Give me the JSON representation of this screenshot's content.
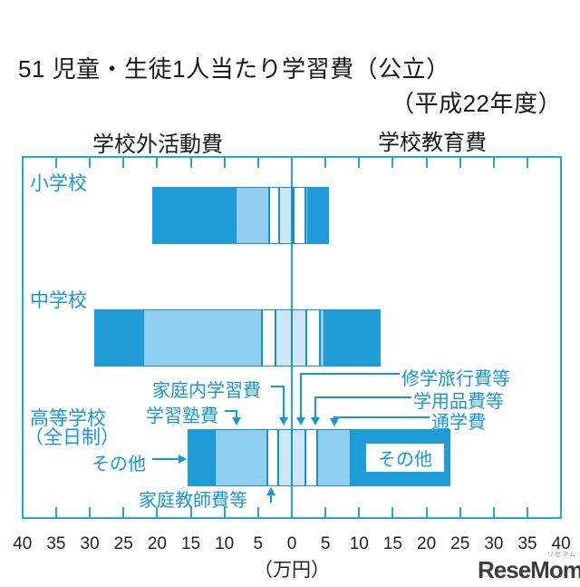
{
  "title": {
    "line1": "51 児童・生徒1人当たり学習費（公立）",
    "line2": "（平成22年度）"
  },
  "header": {
    "left_section": "学校外活動費",
    "right_section": "学校教育費"
  },
  "categories": {
    "row1": "小学校",
    "row2": "中学校",
    "row3_line1": "高等学校",
    "row3_line2": "（全日制）"
  },
  "annotations": {
    "katei_nai": "家庭内学習費",
    "juku": "学習塾費",
    "sonota_left": "その他",
    "katei_kyoshi": "家庭教師費等",
    "shugaku": "修学旅行費等",
    "gakuyohin": "学用品費等",
    "tsugaku": "通学費",
    "sonota_right_box": "その他"
  },
  "axis": {
    "tick_labels": [
      "40",
      "35",
      "30",
      "25",
      "20",
      "15",
      "10",
      "5",
      "0",
      "5",
      "10",
      "15",
      "20",
      "25",
      "30",
      "35",
      "40"
    ],
    "unit_label": "（万円）"
  },
  "logo": {
    "text": "ReseMom.",
    "furigana": "リセマム"
  },
  "colors": {
    "bar_dark": "#1e9cd7",
    "bar_light": "#8fceee",
    "bar_pale": "#cce6f6",
    "bar_white": "#ffffff",
    "frame_blue": "#29a3db",
    "annotation_blue": "#1a97d3",
    "text_black": "#221f1f"
  },
  "chart_data": {
    "type": "bar",
    "variant": "horizontal-diverging-stacked",
    "unit": "万円",
    "title": "51 児童・生徒1人当たり学習費（公立）（平成22年度）",
    "left_side_title": "学校外活動費",
    "right_side_title": "学校教育費",
    "xlabel": "（万円）",
    "xlim": [
      -40,
      40
    ],
    "tick_step": 5,
    "rows": [
      {
        "label": "小学校",
        "left_total": 20.7,
        "right_total": 5.5,
        "left_from_center": [
          {
            "name": "家庭内学習費",
            "value": 1.8,
            "color": "pale"
          },
          {
            "name": "家庭教師費等",
            "value": 1.5,
            "color": "white"
          },
          {
            "name": "学習塾費",
            "value": 5.0,
            "color": "light"
          },
          {
            "name": "その他",
            "value": 12.4,
            "color": "dark"
          }
        ],
        "right_from_center": [
          {
            "name": "修学旅行費等",
            "value": 0.3,
            "color": "pale"
          },
          {
            "name": "学用品費等",
            "value": 1.7,
            "color": "white"
          },
          {
            "name": "通学費",
            "value": 0.4,
            "color": "light"
          },
          {
            "name": "その他",
            "value": 3.1,
            "color": "dark"
          }
        ]
      },
      {
        "label": "中学校",
        "left_total": 29.3,
        "right_total": 13.2,
        "left_from_center": [
          {
            "name": "家庭内学習費",
            "value": 2.4,
            "color": "pale"
          },
          {
            "name": "家庭教師費等",
            "value": 2.0,
            "color": "white"
          },
          {
            "name": "学習塾費",
            "value": 17.6,
            "color": "light"
          },
          {
            "name": "その他",
            "value": 7.3,
            "color": "dark"
          }
        ],
        "right_from_center": [
          {
            "name": "修学旅行費等",
            "value": 2.2,
            "color": "pale"
          },
          {
            "name": "学用品費等",
            "value": 2.0,
            "color": "white"
          },
          {
            "name": "通学費",
            "value": 0.7,
            "color": "light"
          },
          {
            "name": "その他",
            "value": 8.3,
            "color": "dark"
          }
        ]
      },
      {
        "label": "高等学校（全日制）",
        "left_total": 15.4,
        "right_total": 23.6,
        "left_from_center": [
          {
            "name": "家庭内学習費",
            "value": 2.0,
            "color": "pale"
          },
          {
            "name": "家庭教師費等",
            "value": 1.6,
            "color": "white"
          },
          {
            "name": "学習塾費",
            "value": 7.8,
            "color": "light"
          },
          {
            "name": "その他",
            "value": 4.0,
            "color": "dark"
          }
        ],
        "right_from_center": [
          {
            "name": "修学旅行費等",
            "value": 2.0,
            "color": "pale"
          },
          {
            "name": "学用品費等",
            "value": 1.8,
            "color": "white"
          },
          {
            "name": "通学費",
            "value": 5.0,
            "color": "light"
          },
          {
            "name": "その他",
            "value": 14.8,
            "color": "dark"
          }
        ]
      }
    ]
  }
}
